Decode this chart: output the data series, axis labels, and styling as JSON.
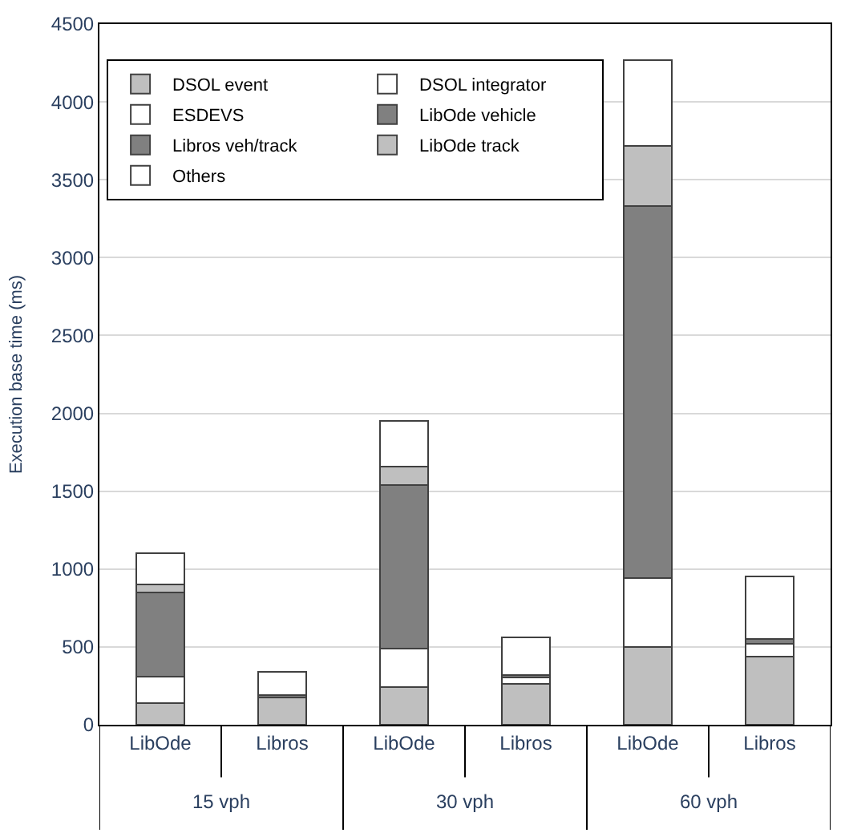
{
  "chart_data": {
    "type": "bar",
    "stacked": true,
    "ylabel": "Execution base time (ms)",
    "categories": [
      "LibOde",
      "Libros",
      "LibOde",
      "Libros",
      "LibOde",
      "Libros"
    ],
    "annotations": [
      "15 vph",
      "30 vph",
      "60 vph"
    ],
    "series": [
      {
        "name": "DSOL event",
        "color": "#bfbfbf",
        "values": [
          140,
          175,
          240,
          265,
          500,
          440
        ]
      },
      {
        "name": "DSOL integrator",
        "color": "#ffffff",
        "values": [
          170,
          null,
          250,
          null,
          440,
          null
        ]
      },
      {
        "name": "ESDEVS",
        "color": "#ffffff",
        "values": [
          null,
          null,
          null,
          40,
          null,
          80
        ]
      },
      {
        "name": "LibOde vehicle",
        "color": "#808080",
        "values": [
          540,
          null,
          1050,
          null,
          2390,
          null
        ]
      },
      {
        "name": "Libros veh/track",
        "color": "#808080",
        "values": [
          null,
          15,
          null,
          15,
          null,
          30
        ]
      },
      {
        "name": "LibOde track",
        "color": "#bfbfbf",
        "values": [
          50,
          null,
          120,
          null,
          390,
          null
        ]
      },
      {
        "name": "Others",
        "color": "#ffffff",
        "values": [
          200,
          150,
          290,
          240,
          550,
          400
        ]
      }
    ],
    "ylim": [
      0,
      4500
    ],
    "yticks": [
      0,
      500,
      1000,
      1500,
      2000,
      2500,
      3000,
      3500,
      4000,
      4500
    ],
    "grid": "y",
    "legend": "top left"
  }
}
